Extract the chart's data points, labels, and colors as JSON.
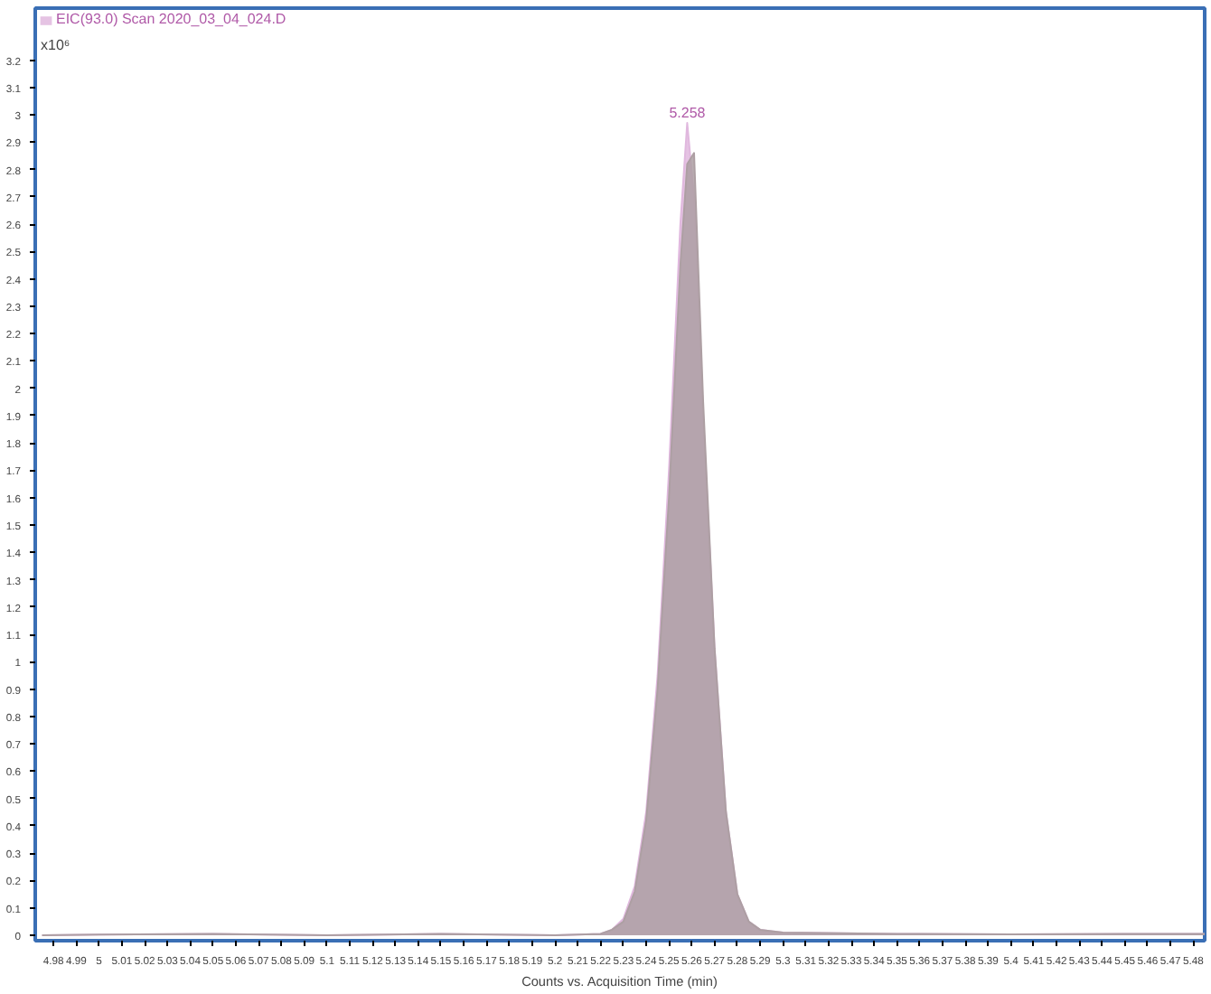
{
  "chart_data": {
    "type": "area",
    "xlabel": "Counts vs. Acquisition Time (min)",
    "ylabel": "x10⁶",
    "x": [
      4.975,
      5.0,
      5.05,
      5.1,
      5.15,
      5.2,
      5.22,
      5.225,
      5.23,
      5.235,
      5.24,
      5.245,
      5.25,
      5.255,
      5.258,
      5.261,
      5.265,
      5.27,
      5.275,
      5.28,
      5.285,
      5.29,
      5.3,
      5.35,
      5.4,
      5.45,
      5.485
    ],
    "series": [
      {
        "name": "EIC(93.0) Scan 2020_03_04_024.D",
        "color": "#e0b8de",
        "values": [
          0.0,
          0.002,
          0.005,
          0.0,
          0.005,
          0.0,
          0.005,
          0.02,
          0.06,
          0.18,
          0.45,
          0.95,
          1.7,
          2.6,
          2.97,
          2.7,
          1.9,
          1.05,
          0.45,
          0.15,
          0.05,
          0.02,
          0.01,
          0.005,
          0.003,
          0.005,
          0.005
        ]
      },
      {
        "color": "#ad9fa3",
        "values": [
          0.0,
          0.002,
          0.005,
          0.0,
          0.005,
          0.0,
          0.005,
          0.02,
          0.05,
          0.16,
          0.42,
          0.9,
          1.6,
          2.45,
          2.82,
          2.86,
          1.95,
          1.05,
          0.45,
          0.15,
          0.05,
          0.02,
          0.01,
          0.005,
          0.003,
          0.005,
          0.005
        ]
      }
    ],
    "annotations": [
      {
        "text": "5.258",
        "x": 5.258,
        "y": 2.97
      }
    ],
    "xlim": [
      4.972,
      5.485
    ],
    "ylim": [
      -0.02,
      3.39
    ],
    "xticks": [
      4.98,
      4.99,
      5,
      5.01,
      5.02,
      5.03,
      5.04,
      5.05,
      5.06,
      5.07,
      5.08,
      5.09,
      5.1,
      5.11,
      5.12,
      5.13,
      5.14,
      5.15,
      5.16,
      5.17,
      5.18,
      5.19,
      5.2,
      5.21,
      5.22,
      5.23,
      5.24,
      5.25,
      5.26,
      5.27,
      5.28,
      5.29,
      5.3,
      5.31,
      5.32,
      5.33,
      5.34,
      5.35,
      5.36,
      5.37,
      5.38,
      5.39,
      5.4,
      5.41,
      5.42,
      5.43,
      5.44,
      5.45,
      5.46,
      5.47,
      5.48
    ],
    "yticks": [
      0,
      0.1,
      0.2,
      0.3,
      0.4,
      0.5,
      0.6,
      0.7,
      0.8,
      0.9,
      1,
      1.1,
      1.2,
      1.3,
      1.4,
      1.5,
      1.6,
      1.7,
      1.8,
      1.9,
      2,
      2.1,
      2.2,
      2.3,
      2.4,
      2.5,
      2.6,
      2.7,
      2.8,
      2.9,
      3,
      3.1,
      3.2
    ],
    "grid": false,
    "legend": "top left"
  }
}
